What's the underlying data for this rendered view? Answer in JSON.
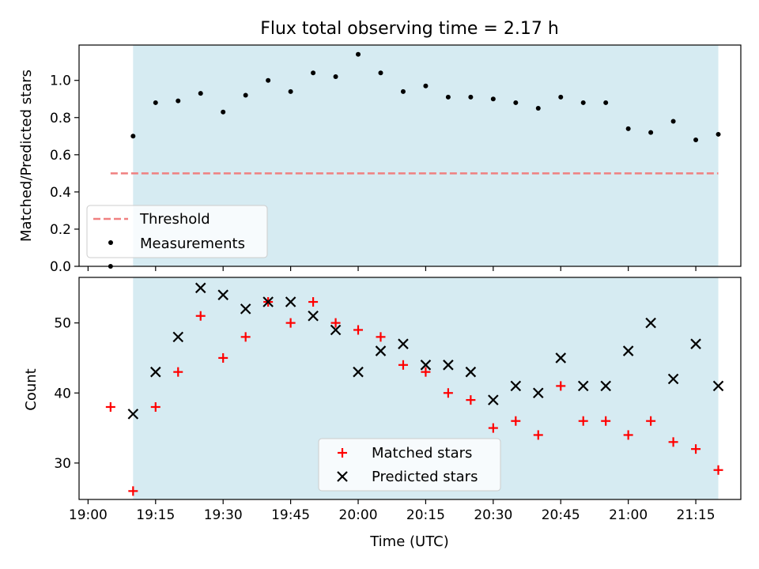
{
  "chart_data": [
    {
      "type": "scatter",
      "title": "Flux total observing time = 2.17 h",
      "xlabel": "",
      "ylabel": "Matched/Predicted stars",
      "ylim": [
        0.0,
        1.19
      ],
      "yticks": [
        "0.0",
        "0.2",
        "0.4",
        "0.6",
        "0.8",
        "1.0"
      ],
      "observing_window": {
        "start": "19:10",
        "end": "21:20",
        "color": "#add8e6"
      },
      "threshold": {
        "name": "Threshold",
        "value": 0.5,
        "x_start": "19:05",
        "x_end": "21:20",
        "color": "#f08080"
      },
      "series": [
        {
          "name": "Measurements",
          "marker": "dot",
          "color": "#000000",
          "x": [
            "19:05",
            "19:10",
            "19:15",
            "19:20",
            "19:25",
            "19:30",
            "19:35",
            "19:40",
            "19:45",
            "19:50",
            "19:55",
            "20:00",
            "20:05",
            "20:10",
            "20:15",
            "20:20",
            "20:25",
            "20:30",
            "20:35",
            "20:40",
            "20:45",
            "20:50",
            "20:55",
            "21:00",
            "21:05",
            "21:10",
            "21:15",
            "21:20"
          ],
          "y": [
            0.0,
            0.7,
            0.88,
            0.89,
            0.93,
            0.83,
            0.92,
            1.0,
            0.94,
            1.04,
            1.02,
            1.14,
            1.04,
            0.94,
            0.97,
            0.91,
            0.91,
            0.9,
            0.88,
            0.85,
            0.91,
            0.88,
            0.88,
            0.74,
            0.72,
            0.78,
            0.68,
            0.71
          ]
        }
      ],
      "legend": {
        "position": "lower-left",
        "entries": [
          "Threshold",
          "Measurements"
        ]
      }
    },
    {
      "type": "scatter",
      "title": "",
      "xlabel": "Time (UTC)",
      "ylabel": "Count",
      "ylim": [
        24.8,
        56.5
      ],
      "yticks": [
        "30",
        "40",
        "50"
      ],
      "xlim": [
        "18:58",
        "21:25"
      ],
      "xticks": [
        "19:00",
        "19:15",
        "19:30",
        "19:45",
        "20:00",
        "20:15",
        "20:30",
        "20:45",
        "21:00",
        "21:15"
      ],
      "observing_window": {
        "start": "19:10",
        "end": "21:20",
        "color": "#add8e6"
      },
      "series": [
        {
          "name": "Matched stars",
          "marker": "plus",
          "color": "#ff0000",
          "x": [
            "19:05",
            "19:10",
            "19:15",
            "19:20",
            "19:25",
            "19:30",
            "19:35",
            "19:40",
            "19:45",
            "19:50",
            "19:55",
            "20:00",
            "20:05",
            "20:10",
            "20:15",
            "20:20",
            "20:25",
            "20:30",
            "20:35",
            "20:40",
            "20:45",
            "20:50",
            "20:55",
            "21:00",
            "21:05",
            "21:10",
            "21:15",
            "21:20"
          ],
          "y": [
            38,
            26,
            38,
            43,
            51,
            45,
            48,
            53,
            50,
            53,
            50,
            49,
            48,
            44,
            43,
            40,
            39,
            35,
            36,
            34,
            41,
            36,
            36,
            34,
            36,
            33,
            32,
            29
          ]
        },
        {
          "name": "Predicted stars",
          "marker": "x",
          "color": "#000000",
          "x": [
            "19:10",
            "19:15",
            "19:20",
            "19:25",
            "19:30",
            "19:35",
            "19:40",
            "19:45",
            "19:50",
            "19:55",
            "20:00",
            "20:05",
            "20:10",
            "20:15",
            "20:20",
            "20:25",
            "20:30",
            "20:35",
            "20:40",
            "20:45",
            "20:50",
            "20:55",
            "21:00",
            "21:05",
            "21:10",
            "21:15",
            "21:20"
          ],
          "y": [
            37,
            43,
            48,
            55,
            54,
            52,
            53,
            53,
            51,
            49,
            43,
            46,
            47,
            44,
            44,
            43,
            39,
            41,
            40,
            45,
            41,
            41,
            46,
            50,
            42,
            47,
            41
          ]
        }
      ],
      "legend": {
        "position": "lower-center",
        "entries": [
          "Matched stars",
          "Predicted stars"
        ]
      }
    }
  ]
}
